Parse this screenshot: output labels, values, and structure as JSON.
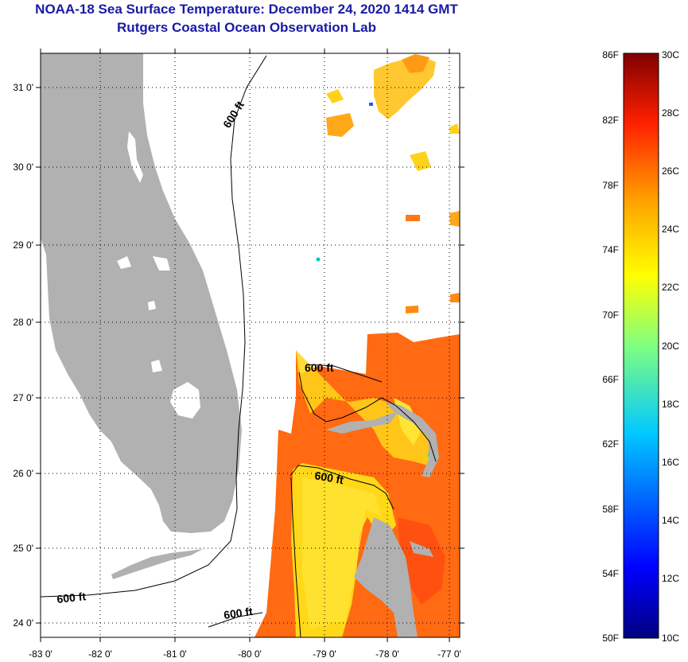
{
  "header": {
    "title": "NOAA-18 Sea Surface Temperature:  December 24, 2020 1414 GMT",
    "subtitle": "Rutgers Coastal Ocean Observation Lab"
  },
  "map": {
    "lon_ticks": [
      "-83 0'",
      "-82 0'",
      "-81 0'",
      "-80 0'",
      "-79 0'",
      "-78 0'",
      "-77 0'"
    ],
    "lat_ticks": [
      "24 0'",
      "25 0'",
      "26 0'",
      "27 0'",
      "28 0'",
      "29 0'",
      "30 0'",
      "31 0'"
    ],
    "lon_range": [
      -83.0,
      -76.9
    ],
    "lat_range": [
      23.8,
      31.4
    ],
    "contour_labels": [
      "600 ft",
      "600 ft",
      "600 ft",
      "600 ft",
      "600 ft"
    ],
    "colors": {
      "land": "#b1b1b1",
      "ocean_no_data": "#ffffff",
      "warm_sst": "#ff5a10",
      "mid_sst": "#ffe814"
    }
  },
  "colorbar": {
    "f_labels": [
      "86F",
      "82F",
      "78F",
      "74F",
      "70F",
      "66F",
      "62F",
      "58F",
      "54F",
      "50F"
    ],
    "c_labels": [
      "30C",
      "28C",
      "26C",
      "24C",
      "22C",
      "20C",
      "18C",
      "16C",
      "14C",
      "12C",
      "10C"
    ],
    "range_c": [
      10,
      30
    ]
  }
}
